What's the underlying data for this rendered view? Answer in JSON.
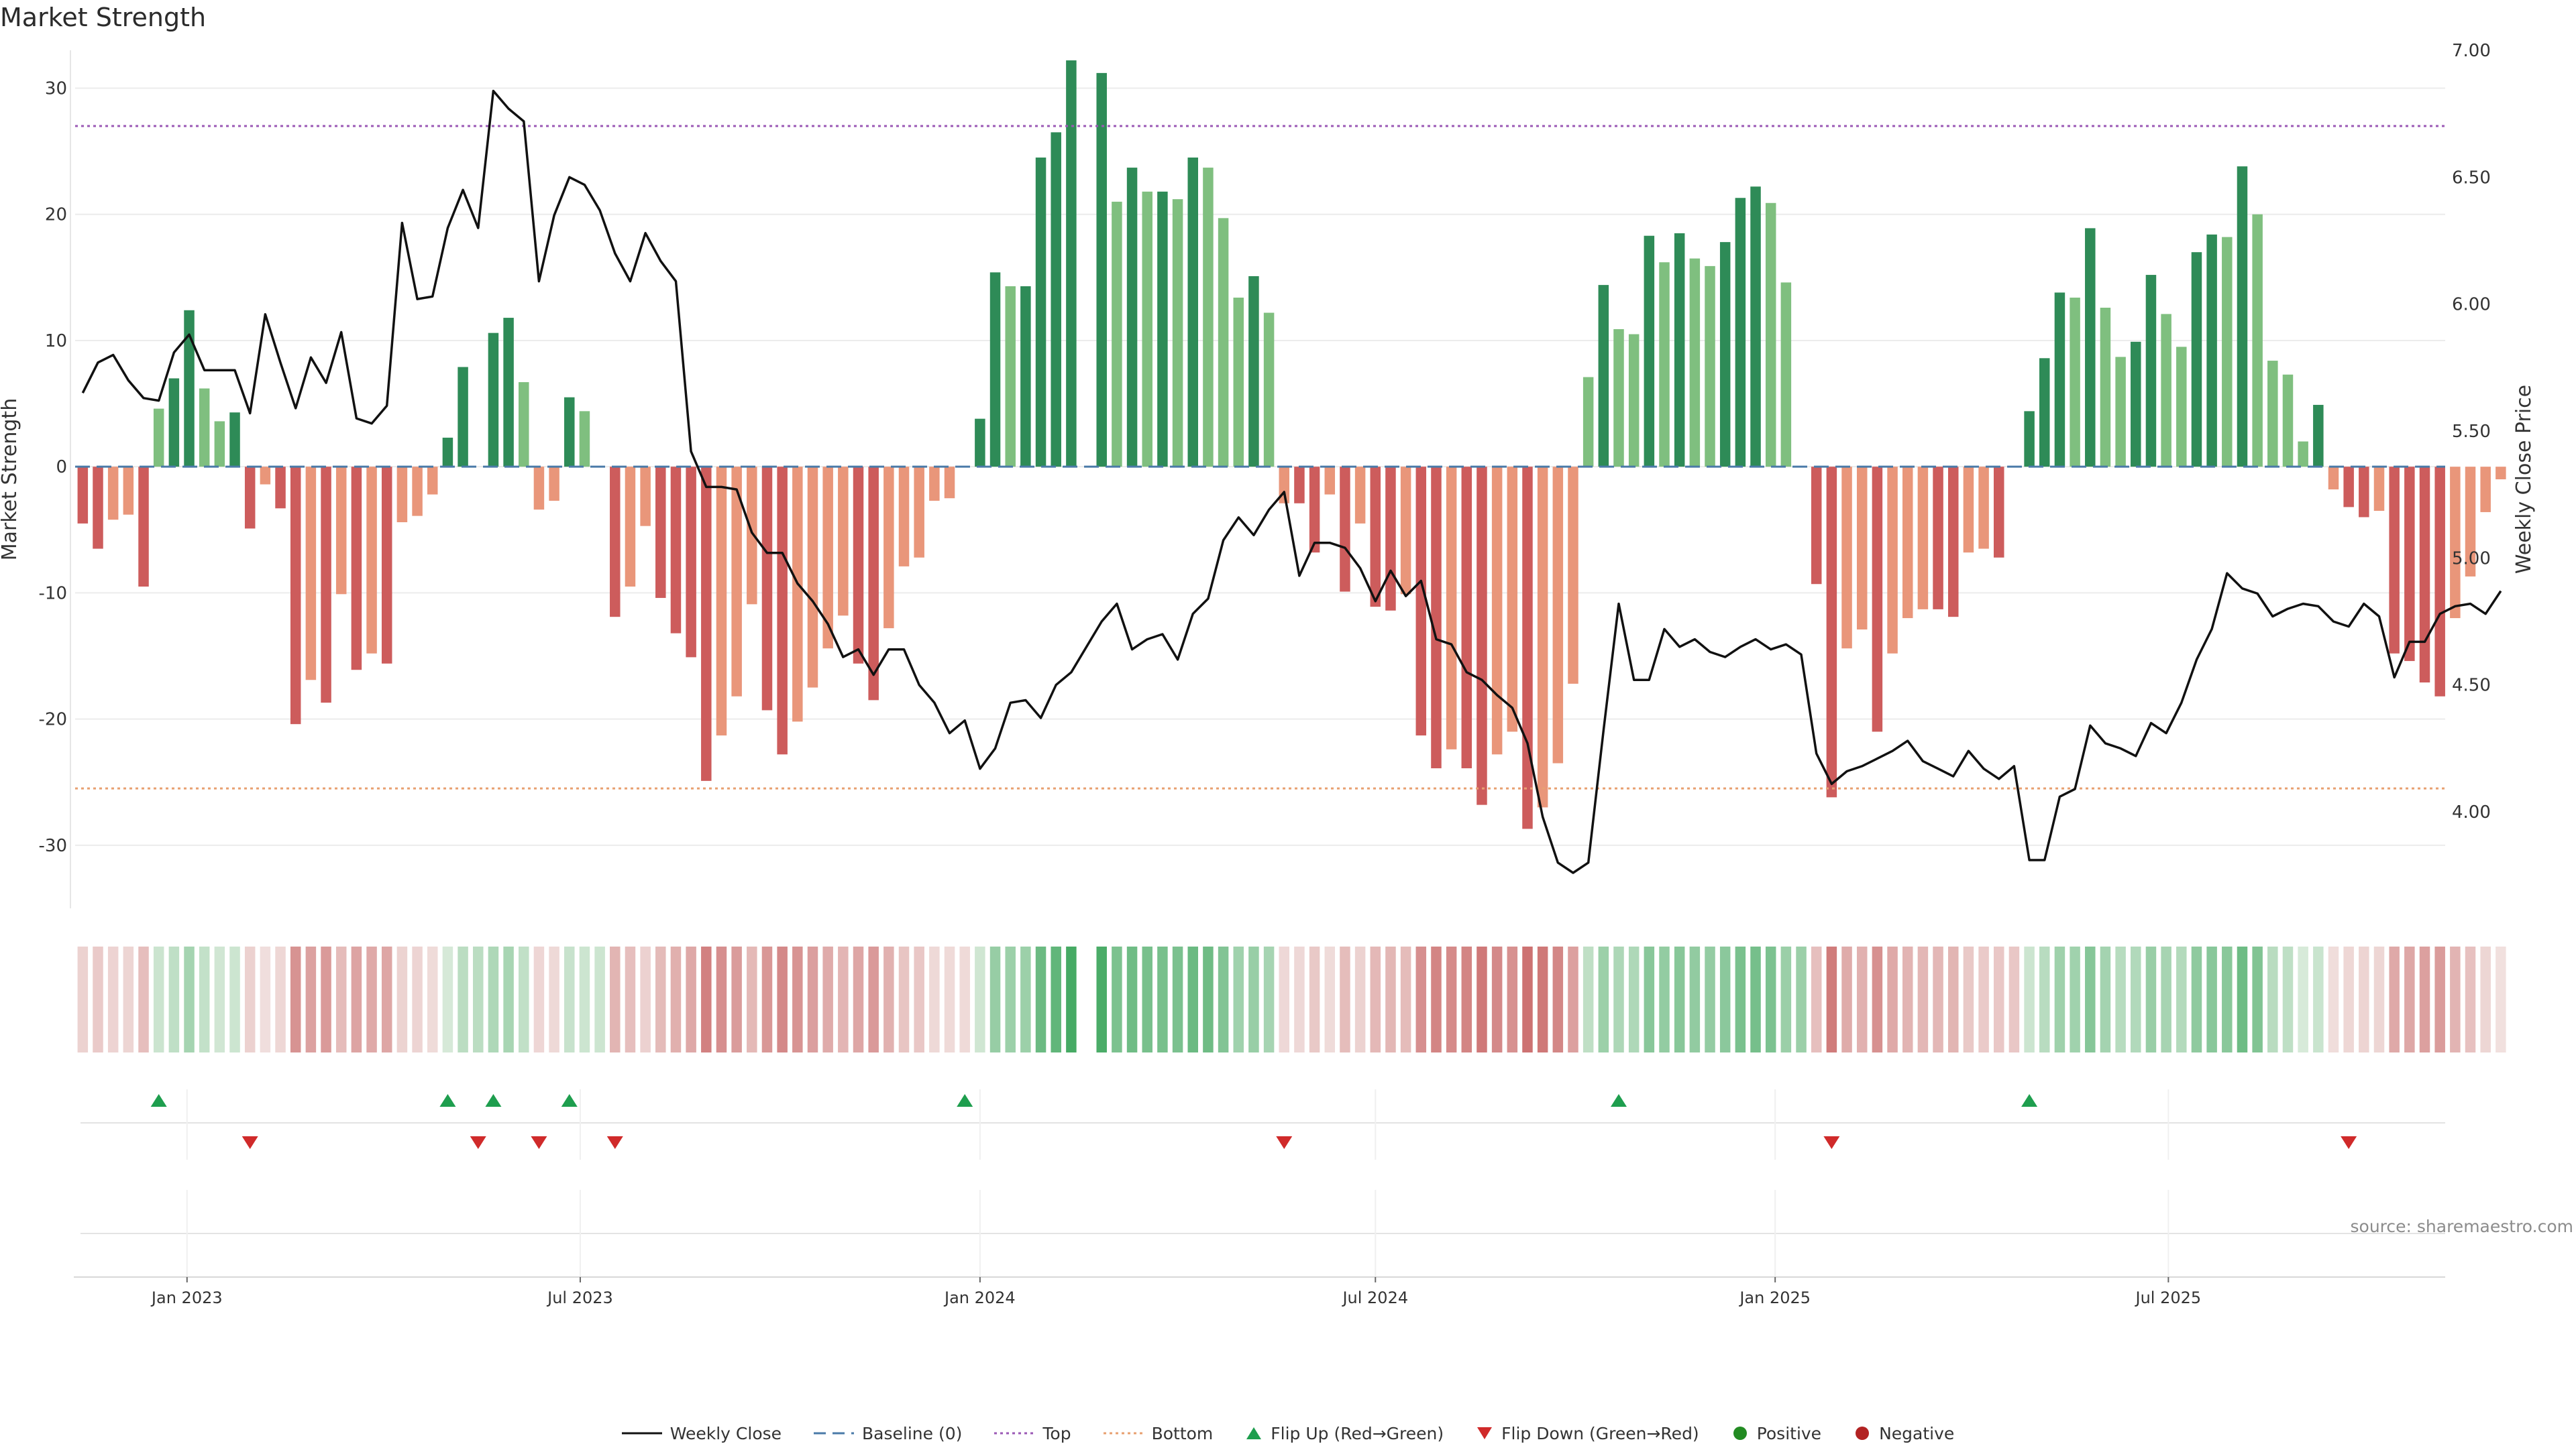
{
  "title": "Market Strength",
  "source": "source: sharemaestro.com",
  "legend": {
    "weekly_close": "Weekly Close",
    "baseline": "Baseline (0)",
    "top": "Top",
    "bottom": "Bottom",
    "flip_up": "Flip Up (Red→Green)",
    "flip_down": "Flip Down (Green→Red)",
    "positive": "Positive",
    "negative": "Negative"
  },
  "colors": {
    "pos_dark": "#2e8b57",
    "pos_light": "#7fbf7f",
    "neg_dark": "#cd5c5c",
    "neg_light": "#e9967a",
    "line": "#111111",
    "baseline": "#4a7aa8",
    "top": "#9b59b6",
    "bottom": "#e8a070",
    "flip_up": "#1e9e4e",
    "flip_down": "#d02a2a",
    "positive": "#228b22",
    "negative": "#b22222"
  },
  "chart_data": {
    "type": "bar+line",
    "title": "Market Strength",
    "ylabel": "Market Strength",
    "y2label": "Weekly Close Price",
    "ylim": [
      -35,
      33
    ],
    "y2lim": [
      3.62,
      7.0
    ],
    "yticks": [
      30,
      20,
      10,
      0,
      -10,
      -20,
      -30
    ],
    "y2ticks": [
      "7.00",
      "6.50",
      "6.00",
      "5.50",
      "5.00",
      "4.50",
      "4.00"
    ],
    "top": 27,
    "bottom": -25.5,
    "baseline": 0,
    "start_date": "2022-11-14",
    "xticks": [
      {
        "date": "2023-01-01",
        "label": "Jan 2023"
      },
      {
        "date": "2023-07-01",
        "label": "Jul 2023"
      },
      {
        "date": "2024-01-01",
        "label": "Jan 2024"
      },
      {
        "date": "2024-07-01",
        "label": "Jul 2024"
      },
      {
        "date": "2025-01-01",
        "label": "Jan 2025"
      },
      {
        "date": "2025-07-01",
        "label": "Jul 2025"
      }
    ],
    "strength": [
      -4.5,
      -6.5,
      -4.2,
      -3.8,
      -9.5,
      4.6,
      7,
      12.4,
      6.2,
      3.6,
      4.3,
      -4.9,
      -1.4,
      -3.3,
      -20.4,
      -16.9,
      -18.7,
      -10.1,
      -16.1,
      -14.8,
      -15.6,
      -4.4,
      -3.9,
      -2.2,
      2.3,
      7.9,
      0,
      10.6,
      11.8,
      6.7,
      -3.4,
      -2.7,
      5.5,
      4.4,
      0,
      -11.9,
      -9.5,
      -4.7,
      -10.4,
      -13.2,
      -15.1,
      -24.9,
      -21.3,
      -18.2,
      -10.9,
      -19.3,
      -22.8,
      -20.2,
      -17.5,
      -14.4,
      -11.8,
      -15.6,
      -18.5,
      -12.8,
      -7.9,
      -7.2,
      -2.7,
      -2.5,
      0,
      3.8,
      15.4,
      14.3,
      14.3,
      24.5,
      26.5,
      32.2,
      0,
      31.2,
      21,
      23.7,
      21.8,
      21.8,
      21.2,
      24.5,
      23.7,
      19.7,
      13.4,
      15.1,
      12.2,
      -2.9,
      -2.9,
      -6.8,
      -2.2,
      -9.9,
      -4.5,
      -11.1,
      -11.4,
      -10.1,
      -21.3,
      -23.9,
      -22.4,
      -23.9,
      -26.8,
      -22.8,
      -21,
      -28.7,
      -27,
      -23.5,
      -17.2,
      7.1,
      14.4,
      10.9,
      10.5,
      18.3,
      16.2,
      18.5,
      16.5,
      15.9,
      17.8,
      21.3,
      22.2,
      20.9,
      14.6,
      0,
      -9.3,
      -26.2,
      -14.4,
      -12.9,
      -21,
      -14.8,
      -12,
      -11.3,
      -11.3,
      -11.9,
      -6.8,
      -6.5,
      -7.2,
      0,
      4.4,
      8.6,
      13.8,
      13.4,
      18.9,
      12.6,
      8.7,
      9.9,
      15.2,
      12.1,
      9.5,
      17,
      18.4,
      18.2,
      23.8,
      20,
      8.4,
      7.3,
      2,
      4.9,
      -1.8,
      -3.2,
      -4,
      -3.5,
      -14.8,
      -15.4,
      -17.1,
      -18.2,
      -12,
      -8.7,
      -3.6,
      -1
    ],
    "close": [
      5.65,
      5.77,
      5.8,
      5.7,
      5.63,
      5.62,
      5.81,
      5.88,
      5.74,
      5.74,
      5.74,
      5.57,
      5.96,
      5.77,
      5.59,
      5.79,
      5.69,
      5.89,
      5.55,
      5.53,
      5.6,
      6.32,
      6.02,
      6.03,
      6.3,
      6.45,
      6.3,
      6.84,
      6.77,
      6.72,
      6.09,
      6.35,
      6.5,
      6.47,
      6.37,
      6.2,
      6.09,
      6.28,
      6.17,
      6.09,
      5.42,
      5.28,
      5.28,
      5.27,
      5.1,
      5.02,
      5.02,
      4.9,
      4.83,
      4.74,
      4.61,
      4.64,
      4.54,
      4.64,
      4.64,
      4.5,
      4.43,
      4.31,
      4.36,
      4.17,
      4.25,
      4.43,
      4.44,
      4.37,
      4.5,
      4.55,
      4.65,
      4.75,
      4.82,
      4.64,
      4.68,
      4.7,
      4.6,
      4.78,
      4.84,
      5.07,
      5.16,
      5.09,
      5.19,
      5.26,
      4.93,
      5.06,
      5.06,
      5.04,
      4.96,
      4.83,
      4.95,
      4.85,
      4.91,
      4.68,
      4.66,
      4.55,
      4.52,
      4.46,
      4.41,
      4.27,
      3.98,
      3.8,
      3.76,
      3.8,
      4.32,
      4.82,
      4.52,
      4.52,
      4.72,
      4.65,
      4.68,
      4.63,
      4.61,
      4.65,
      4.68,
      4.64,
      4.66,
      4.62,
      4.23,
      4.11,
      4.16,
      4.18,
      4.21,
      4.24,
      4.28,
      4.2,
      4.17,
      4.14,
      4.24,
      4.17,
      4.13,
      4.18,
      3.81,
      3.81,
      4.06,
      4.09,
      4.34,
      4.27,
      4.25,
      4.22,
      4.35,
      4.31,
      4.43,
      4.6,
      4.72,
      4.94,
      4.88,
      4.86,
      4.77,
      4.8,
      4.82,
      4.81,
      4.75,
      4.73,
      4.82,
      4.77,
      4.53,
      4.67,
      4.67,
      4.78,
      4.81,
      4.82,
      4.78,
      4.87
    ],
    "flips_up": [
      5,
      24,
      27,
      32,
      58,
      101,
      128
    ],
    "flips_down": [
      11,
      26,
      30,
      35,
      79,
      115,
      149
    ]
  }
}
